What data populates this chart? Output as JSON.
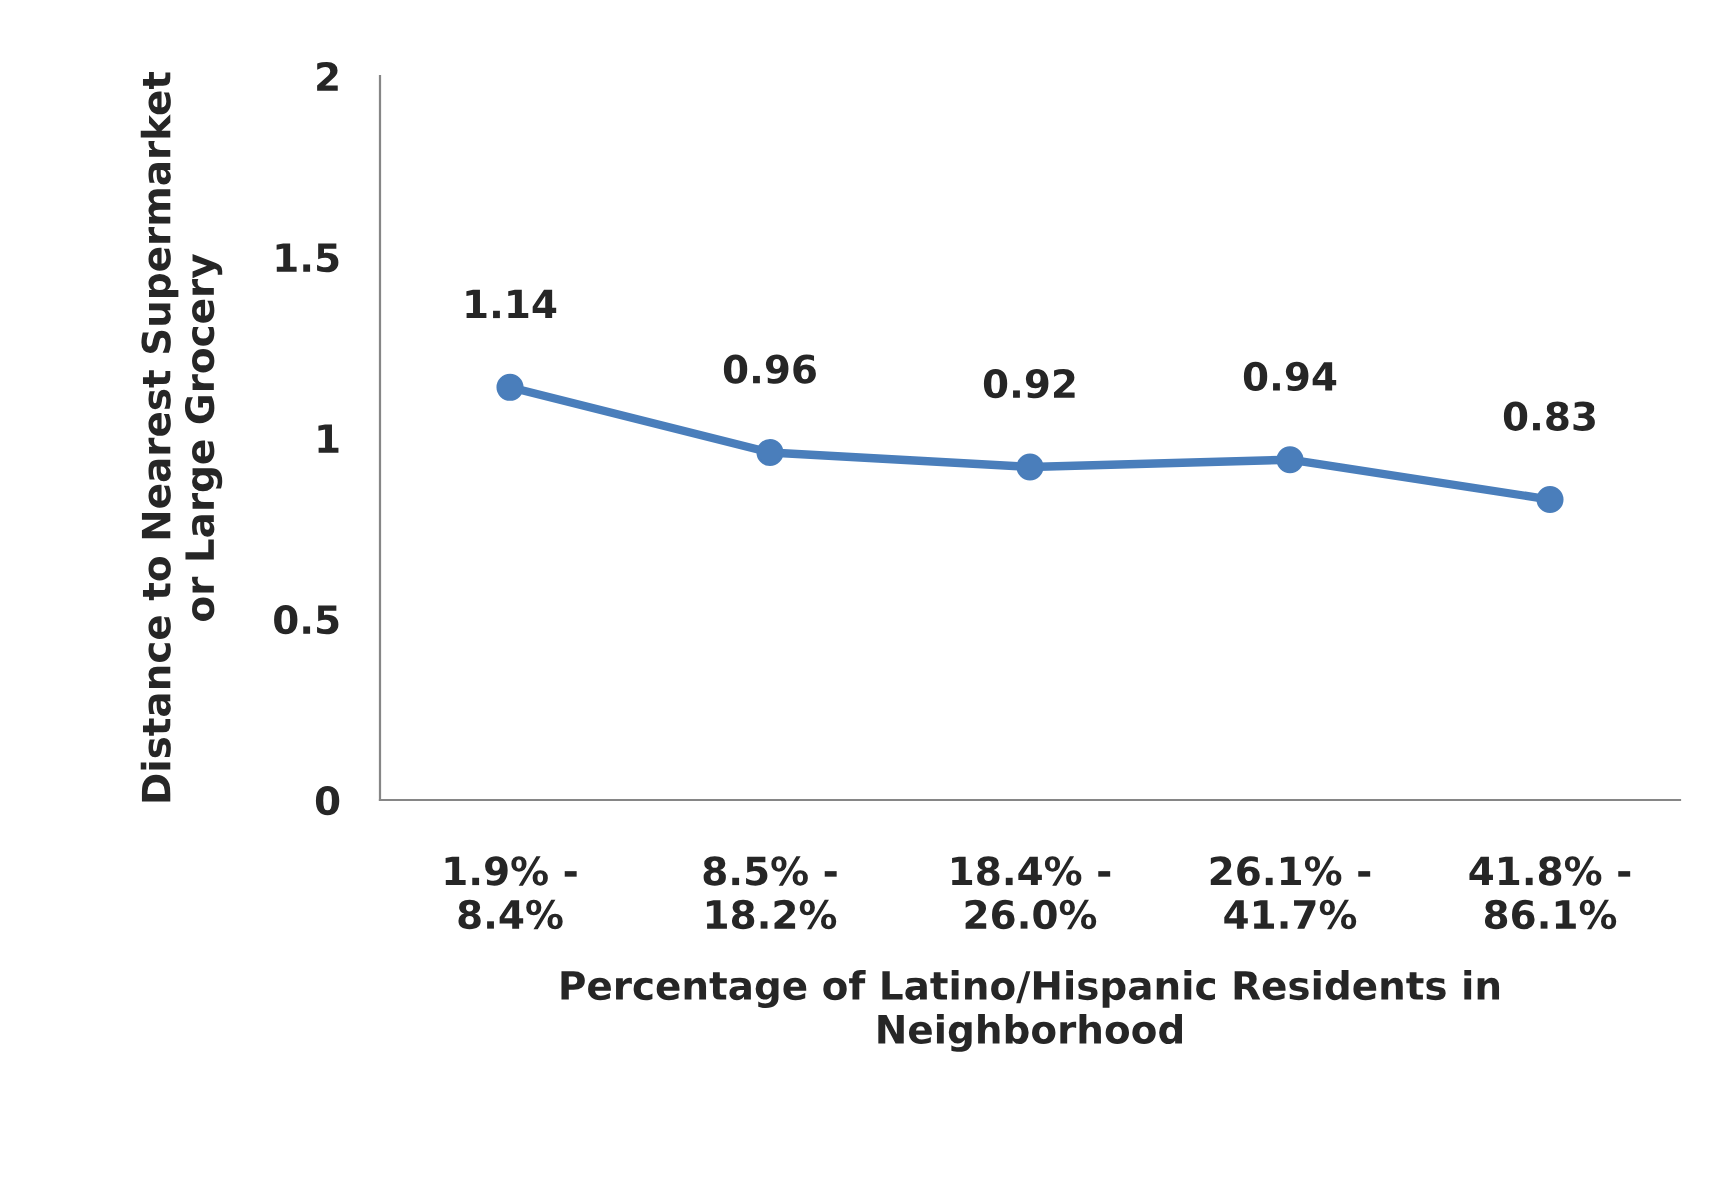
{
  "chart_data": {
    "type": "line",
    "xlabel": "Percentage of Latino/Hispanic Residents in\nNeighborhood",
    "ylabel": "Distance to Nearest Supermarket\nor Large Grocery",
    "categories": [
      "1.9% -\n8.4%",
      "8.5% -\n18.2%",
      "18.4% -\n26.0%",
      "26.1% -\n41.7%",
      "41.8% -\n86.1%"
    ],
    "series": [
      {
        "color": "#4a7ebb",
        "values": [
          1.14,
          0.96,
          0.92,
          0.94,
          0.83
        ]
      }
    ],
    "ylim": [
      0,
      2
    ],
    "yticks": [
      0,
      0.5,
      1,
      1.5,
      2
    ],
    "data_labels": true,
    "marker": "circle",
    "line_style": "solid",
    "grid": false,
    "legend": false
  }
}
